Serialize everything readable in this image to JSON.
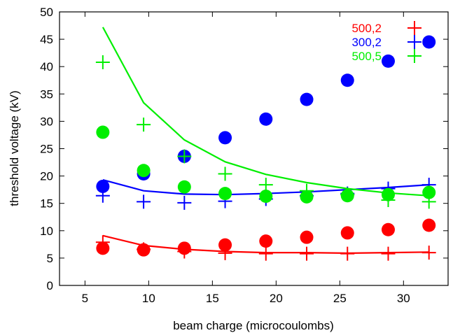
{
  "chart_data": {
    "type": "scatter",
    "title": "",
    "xlabel": "beam charge (microcoulombs)",
    "ylabel": "threshold voltage (kV)",
    "xlim": [
      3,
      33.5
    ],
    "ylim": [
      0,
      50
    ],
    "xticks": [
      5,
      10,
      15,
      20,
      25,
      30
    ],
    "yticks": [
      0,
      5,
      10,
      15,
      20,
      25,
      30,
      35,
      40,
      45,
      50
    ],
    "grid": false,
    "legend_position": "top-right",
    "series": [
      {
        "name": "500,2",
        "color": "#ff0000",
        "crosses": [
          [
            6.4,
            7.9
          ],
          [
            9.6,
            6.6
          ],
          [
            12.8,
            6.2
          ],
          [
            16.0,
            5.9
          ],
          [
            19.2,
            5.8
          ],
          [
            22.4,
            5.8
          ],
          [
            25.6,
            5.8
          ],
          [
            28.8,
            5.8
          ],
          [
            32.0,
            6.0
          ]
        ],
        "circles": [
          [
            6.4,
            6.8
          ],
          [
            9.6,
            6.5
          ],
          [
            12.8,
            6.8
          ],
          [
            16.0,
            7.4
          ],
          [
            19.2,
            8.1
          ],
          [
            22.4,
            8.8
          ],
          [
            25.6,
            9.6
          ],
          [
            28.8,
            10.2
          ],
          [
            32.0,
            11.0
          ]
        ],
        "line": [
          [
            6.4,
            9.1
          ],
          [
            9.6,
            7.3
          ],
          [
            12.8,
            6.6
          ],
          [
            16.0,
            6.2
          ],
          [
            19.2,
            6.0
          ],
          [
            22.4,
            6.0
          ],
          [
            25.6,
            5.9
          ],
          [
            28.8,
            6.0
          ],
          [
            32.0,
            6.1
          ]
        ]
      },
      {
        "name": "300,2",
        "color": "#0000ff",
        "crosses": [
          [
            6.4,
            16.4
          ],
          [
            9.6,
            15.3
          ],
          [
            12.8,
            15.1
          ],
          [
            16.0,
            15.4
          ],
          [
            19.2,
            15.8
          ],
          [
            22.4,
            16.4
          ],
          [
            25.6,
            16.8
          ],
          [
            28.8,
            17.7
          ],
          [
            32.0,
            18.4
          ]
        ],
        "circles": [
          [
            6.4,
            18.1
          ],
          [
            9.6,
            20.4
          ],
          [
            12.8,
            23.6
          ],
          [
            16.0,
            27.0
          ],
          [
            19.2,
            30.4
          ],
          [
            22.4,
            34.0
          ],
          [
            25.6,
            37.5
          ],
          [
            28.8,
            41.0
          ],
          [
            32.0,
            44.5
          ]
        ],
        "line": [
          [
            6.4,
            19.3
          ],
          [
            9.6,
            17.3
          ],
          [
            12.8,
            16.7
          ],
          [
            16.0,
            16.6
          ],
          [
            19.2,
            16.8
          ],
          [
            22.4,
            17.1
          ],
          [
            25.6,
            17.5
          ],
          [
            28.8,
            17.9
          ],
          [
            32.0,
            18.4
          ]
        ]
      },
      {
        "name": "500,5",
        "color": "#00ee00",
        "crosses": [
          [
            6.4,
            40.8
          ],
          [
            9.6,
            29.4
          ],
          [
            12.8,
            23.6
          ],
          [
            16.0,
            20.4
          ],
          [
            19.2,
            18.4
          ],
          [
            22.4,
            17.3
          ],
          [
            25.6,
            16.6
          ],
          [
            28.8,
            15.6
          ],
          [
            32.0,
            15.3
          ]
        ],
        "circles": [
          [
            6.4,
            28.0
          ],
          [
            9.6,
            21.0
          ],
          [
            12.8,
            18.0
          ],
          [
            16.0,
            16.8
          ],
          [
            19.2,
            16.3
          ],
          [
            22.4,
            16.2
          ],
          [
            25.6,
            16.4
          ],
          [
            28.8,
            16.6
          ],
          [
            32.0,
            17.0
          ]
        ],
        "line": [
          [
            6.4,
            47.2
          ],
          [
            9.6,
            33.4
          ],
          [
            12.8,
            26.6
          ],
          [
            16.0,
            22.6
          ],
          [
            19.2,
            20.3
          ],
          [
            22.4,
            18.8
          ],
          [
            25.6,
            17.7
          ],
          [
            28.8,
            16.9
          ],
          [
            32.0,
            16.4
          ]
        ]
      }
    ]
  }
}
